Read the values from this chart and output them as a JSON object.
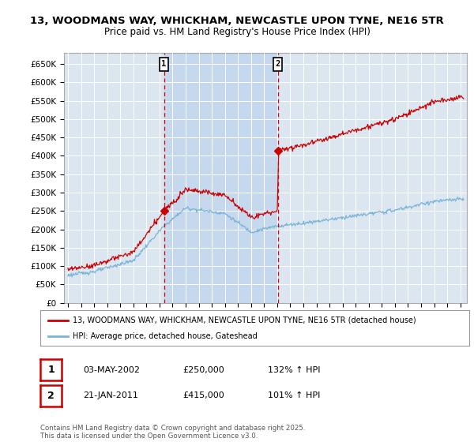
{
  "title_line1": "13, WOODMANS WAY, WHICKHAM, NEWCASTLE UPON TYNE, NE16 5TR",
  "title_line2": "Price paid vs. HM Land Registry's House Price Index (HPI)",
  "y_ticks": [
    0,
    50000,
    100000,
    150000,
    200000,
    250000,
    300000,
    350000,
    400000,
    450000,
    500000,
    550000,
    600000,
    650000
  ],
  "y_tick_labels": [
    "£0",
    "£50K",
    "£100K",
    "£150K",
    "£200K",
    "£250K",
    "£300K",
    "£350K",
    "£400K",
    "£450K",
    "£500K",
    "£550K",
    "£600K",
    "£650K"
  ],
  "ylim": [
    0,
    680000
  ],
  "xlim_start": 1994.7,
  "xlim_end": 2025.5,
  "sale1_date": 2002.34,
  "sale1_price": 250000,
  "sale1_label": "1",
  "sale2_date": 2011.05,
  "sale2_price": 415000,
  "sale2_label": "2",
  "hpi_color": "#7ab4d8",
  "price_color": "#cc0000",
  "dashed_color": "#dd0000",
  "plot_bg_color": "#dce6f1",
  "shade_color": "#c5d8ee",
  "grid_color": "#ffffff",
  "legend_line1": "13, WOODMANS WAY, WHICKHAM, NEWCASTLE UPON TYNE, NE16 5TR (detached house)",
  "legend_line2": "HPI: Average price, detached house, Gateshead",
  "table_row1": [
    "1",
    "03-MAY-2002",
    "£250,000",
    "132% ↑ HPI"
  ],
  "table_row2": [
    "2",
    "21-JAN-2011",
    "£415,000",
    "101% ↑ HPI"
  ],
  "footer": "Contains HM Land Registry data © Crown copyright and database right 2025.\nThis data is licensed under the Open Government Licence v3.0.",
  "title_fontsize": 9.5,
  "subtitle_fontsize": 8.5
}
